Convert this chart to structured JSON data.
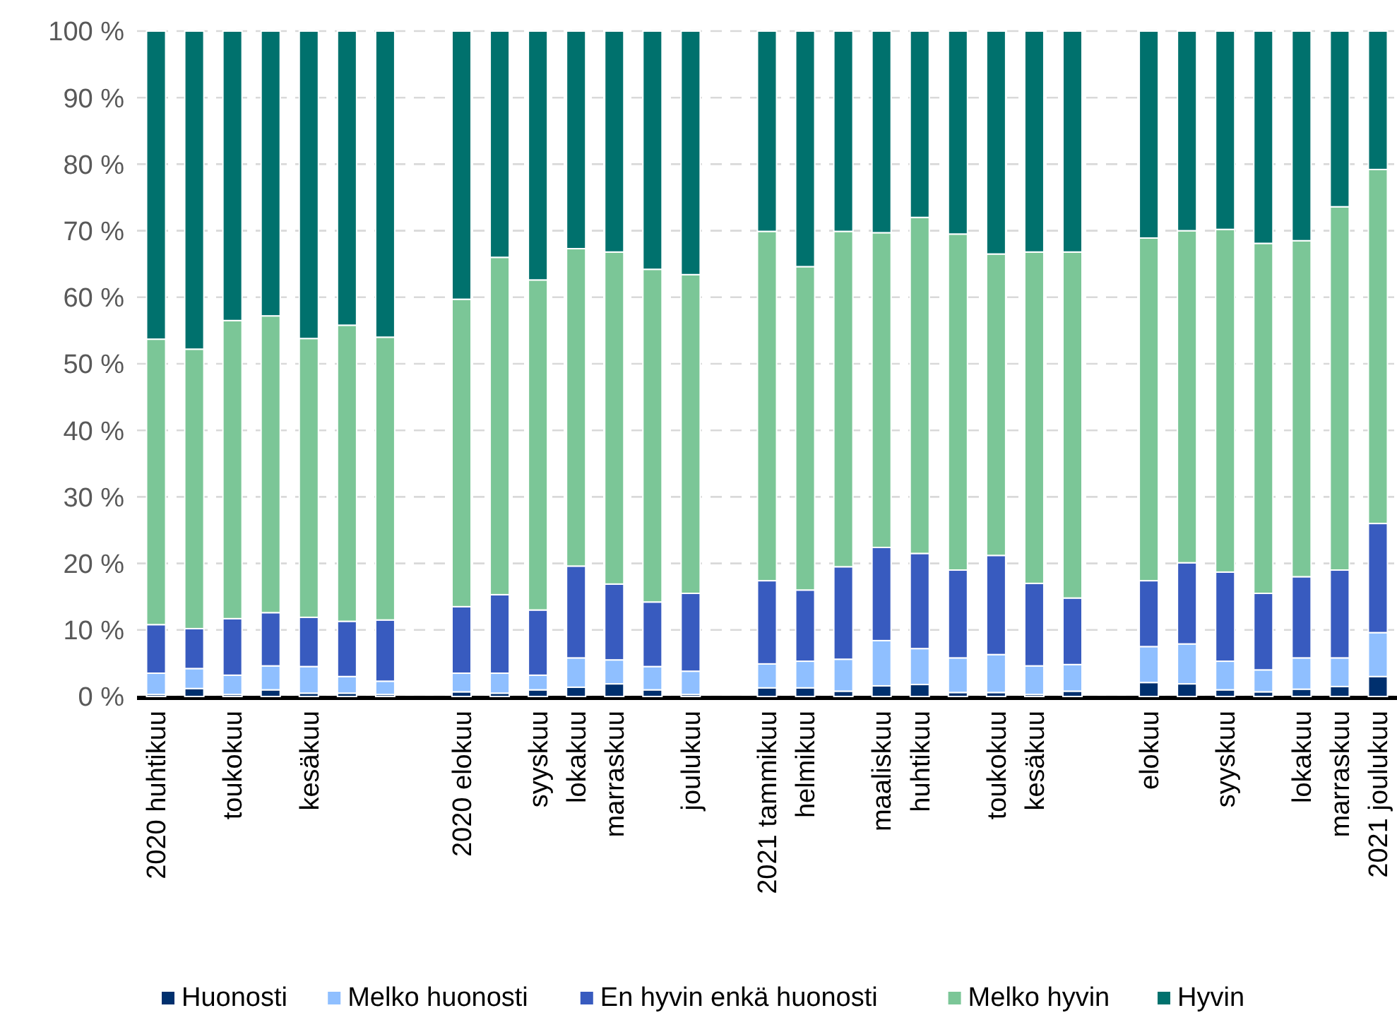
{
  "chart_data": {
    "type": "bar",
    "stacked": true,
    "categories": [
      "2020 huhtikuu",
      null,
      "toukokuu",
      null,
      "kesäkuu",
      null,
      null,
      null,
      "2020 elokuu",
      null,
      "syyskuu",
      "lokakuu",
      "marraskuu",
      null,
      "joulukuu",
      null,
      "2021 tammikuu",
      "helmikuu",
      null,
      "maaliskuu",
      "huhtikuu",
      null,
      "toukokuu",
      "kesäkuu",
      null,
      null,
      "elokuu",
      null,
      "syyskuu",
      null,
      "lokakuu",
      "marraskuu",
      "2021 joulukuu"
    ],
    "series": [
      {
        "name": "Huonosti",
        "color": "#00306e",
        "values": [
          0.3,
          1.2,
          0.3,
          1.0,
          0.5,
          0.5,
          0.3,
          null,
          0.7,
          0.5,
          1.0,
          1.4,
          1.9,
          1.0,
          0.3,
          null,
          1.3,
          1.3,
          0.8,
          1.6,
          1.8,
          0.6,
          0.6,
          0.3,
          0.8,
          null,
          2.1,
          1.9,
          1.0,
          0.7,
          1.1,
          1.5,
          3.0
        ]
      },
      {
        "name": "Melko huonosti",
        "color": "#8fbfff",
        "values": [
          3.2,
          3.0,
          2.9,
          3.6,
          4.0,
          2.5,
          2.0,
          null,
          2.8,
          3.0,
          2.2,
          4.4,
          3.6,
          3.5,
          3.5,
          null,
          3.6,
          4.0,
          4.8,
          6.8,
          5.4,
          5.2,
          5.7,
          4.3,
          4.0,
          null,
          5.4,
          6.0,
          4.3,
          3.3,
          4.7,
          4.3,
          6.6
        ]
      },
      {
        "name": "En hyvin enkä huonosti",
        "color": "#385bbf",
        "values": [
          7.3,
          6.0,
          8.5,
          8.0,
          7.4,
          8.3,
          9.2,
          null,
          10.0,
          11.8,
          9.8,
          13.8,
          11.4,
          9.7,
          11.7,
          null,
          12.5,
          10.7,
          13.9,
          14.0,
          14.3,
          13.2,
          14.9,
          12.4,
          10.0,
          null,
          9.9,
          12.2,
          13.4,
          11.5,
          12.2,
          13.2,
          16.4
        ]
      },
      {
        "name": "Melko hyvin",
        "color": "#7bc697",
        "values": [
          42.9,
          42.0,
          44.8,
          44.6,
          41.9,
          44.5,
          42.5,
          null,
          46.2,
          50.7,
          49.6,
          47.7,
          49.9,
          50.0,
          47.9,
          null,
          52.5,
          48.6,
          50.4,
          47.3,
          50.5,
          50.5,
          45.3,
          49.8,
          52.0,
          null,
          51.5,
          49.9,
          51.5,
          52.6,
          50.5,
          54.6,
          53.2
        ]
      },
      {
        "name": "Hyvin",
        "color": "#00716d",
        "values": [
          46.3,
          47.8,
          43.5,
          42.8,
          46.2,
          44.2,
          46.0,
          null,
          40.3,
          34.0,
          37.4,
          32.7,
          33.2,
          35.8,
          36.6,
          null,
          30.1,
          35.4,
          30.1,
          30.3,
          28.0,
          30.5,
          33.5,
          33.2,
          33.2,
          null,
          31.1,
          30.0,
          29.8,
          31.9,
          31.5,
          26.4,
          20.8
        ]
      }
    ],
    "ylim": [
      0,
      100
    ],
    "yticks": [
      {
        "value": 0,
        "label": "0 %"
      },
      {
        "value": 10,
        "label": "10 %"
      },
      {
        "value": 20,
        "label": "20 %"
      },
      {
        "value": 30,
        "label": "30 %"
      },
      {
        "value": 40,
        "label": "40 %"
      },
      {
        "value": 50,
        "label": "50 %"
      },
      {
        "value": 60,
        "label": "60 %"
      },
      {
        "value": 70,
        "label": "70 %"
      },
      {
        "value": 80,
        "label": "80 %"
      },
      {
        "value": 90,
        "label": "90 %"
      },
      {
        "value": 100,
        "label": "100 %"
      }
    ],
    "grid": "y",
    "legend": "bottom"
  }
}
